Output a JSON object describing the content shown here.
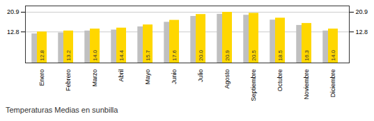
{
  "chart_data": {
    "type": "bar",
    "title": "Temperaturas Medias en sunbilla",
    "categories": [
      "Enero",
      "Febrero",
      "Marzo",
      "Abril",
      "Mayo",
      "Junio",
      "Julio",
      "Agosto",
      "Septiembre",
      "Octubre",
      "Noviembre",
      "Diciembre"
    ],
    "series": [
      {
        "color": "#C0C0C0",
        "values": [
          12.0,
          12.4,
          13.2,
          13.6,
          14.9,
          16.8,
          19.2,
          20.1,
          19.7,
          17.7,
          15.5,
          13.2
        ]
      },
      {
        "color": "#FFD700",
        "values": [
          12.8,
          13.2,
          14.0,
          14.4,
          15.7,
          17.6,
          20.0,
          20.9,
          20.5,
          18.5,
          16.3,
          14.0
        ],
        "value_labels": [
          "12.8",
          "13.2",
          "14.0",
          "14.4",
          "15.7",
          "17.6",
          "20.0",
          "20.9",
          "20.5",
          "18.5",
          "16.3",
          "14.0"
        ]
      }
    ],
    "ylim": [
      0,
      23.5
    ],
    "yticks": [
      12.8,
      20.9
    ],
    "y2lim": [
      0,
      23.5
    ],
    "y2ticks": [
      12.8,
      20.9
    ],
    "grid": true,
    "data_labels": true
  }
}
